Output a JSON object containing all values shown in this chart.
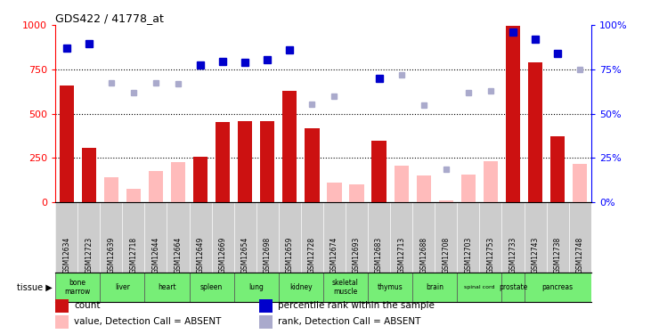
{
  "title": "GDS422 / 41778_at",
  "samples": [
    "GSM12634",
    "GSM12723",
    "GSM12639",
    "GSM12718",
    "GSM12644",
    "GSM12664",
    "GSM12649",
    "GSM12669",
    "GSM12654",
    "GSM12698",
    "GSM12659",
    "GSM12728",
    "GSM12674",
    "GSM12693",
    "GSM12683",
    "GSM12713",
    "GSM12688",
    "GSM12708",
    "GSM12703",
    "GSM12753",
    "GSM12733",
    "GSM12743",
    "GSM12738",
    "GSM12748"
  ],
  "count_present": [
    660,
    305,
    null,
    null,
    null,
    null,
    255,
    450,
    455,
    455,
    630,
    415,
    null,
    null,
    345,
    null,
    null,
    null,
    null,
    null,
    995,
    790,
    370,
    null
  ],
  "count_absent": [
    null,
    null,
    140,
    75,
    175,
    225,
    null,
    null,
    null,
    null,
    null,
    null,
    110,
    100,
    null,
    205,
    150,
    10,
    155,
    230,
    null,
    null,
    null,
    215
  ],
  "rank_present": [
    87.0,
    89.5,
    null,
    null,
    null,
    null,
    77.5,
    79.5,
    79.0,
    80.5,
    86.0,
    null,
    null,
    null,
    70.0,
    null,
    null,
    null,
    null,
    null,
    96.0,
    92.0,
    84.0,
    null
  ],
  "rank_absent": [
    null,
    null,
    67.5,
    62.0,
    67.5,
    67.0,
    null,
    null,
    null,
    null,
    null,
    55.5,
    60.0,
    null,
    null,
    72.0,
    55.0,
    18.5,
    62.0,
    63.0,
    null,
    null,
    null,
    75.0
  ],
  "ylim_left": [
    0,
    1000
  ],
  "ylim_right": [
    0,
    100
  ],
  "yticks_left": [
    0,
    250,
    500,
    750,
    1000
  ],
  "yticks_right": [
    0,
    25,
    50,
    75,
    100
  ],
  "bar_color_present": "#cc1111",
  "bar_color_absent": "#ffbbbb",
  "rank_color_present": "#0000cc",
  "rank_color_absent": "#aaaacc",
  "tissue_groups": [
    {
      "name": "bone\nmarrow",
      "start": 0,
      "end": 1
    },
    {
      "name": "liver",
      "start": 2,
      "end": 3
    },
    {
      "name": "heart",
      "start": 4,
      "end": 5
    },
    {
      "name": "spleen",
      "start": 6,
      "end": 7
    },
    {
      "name": "lung",
      "start": 8,
      "end": 9
    },
    {
      "name": "kidney",
      "start": 10,
      "end": 11
    },
    {
      "name": "skeletal\nmuscle",
      "start": 12,
      "end": 13
    },
    {
      "name": "thymus",
      "start": 14,
      "end": 15
    },
    {
      "name": "brain",
      "start": 16,
      "end": 17
    },
    {
      "name": "spinal cord",
      "start": 18,
      "end": 19
    },
    {
      "name": "prostate",
      "start": 20,
      "end": 20
    },
    {
      "name": "pancreas",
      "start": 21,
      "end": 23
    }
  ],
  "legend_items": [
    {
      "color": "#cc1111",
      "label": "count"
    },
    {
      "color": "#0000cc",
      "label": "percentile rank within the sample"
    },
    {
      "color": "#ffbbbb",
      "label": "value, Detection Call = ABSENT"
    },
    {
      "color": "#aaaacc",
      "label": "rank, Detection Call = ABSENT"
    }
  ],
  "tissue_color": "#77ee77",
  "sample_bg_color": "#cccccc",
  "fig_bg": "#ffffff"
}
